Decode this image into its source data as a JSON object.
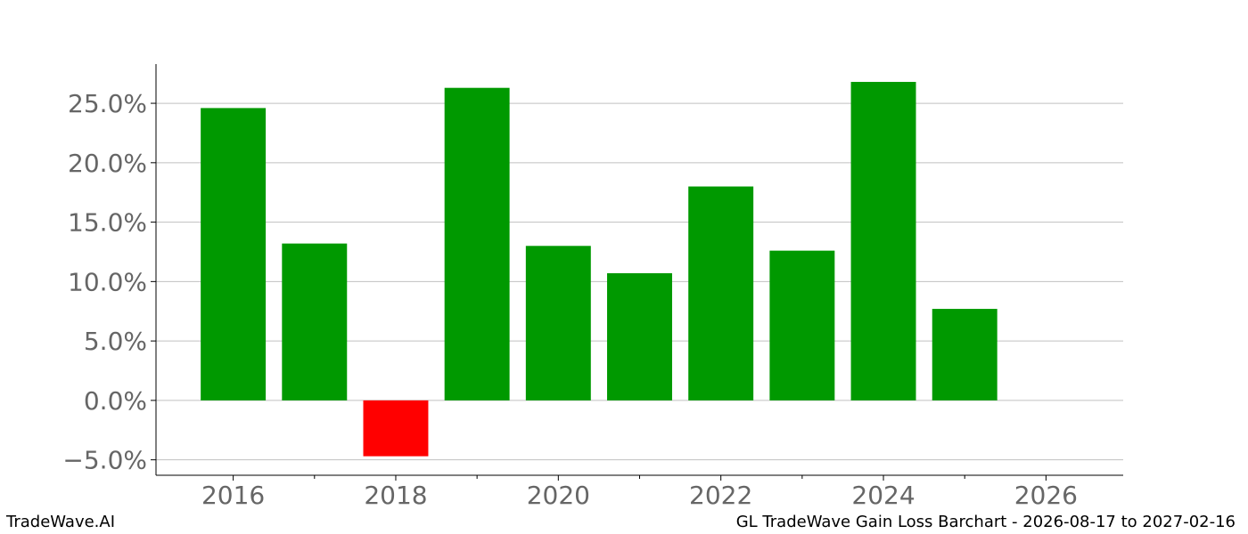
{
  "footer": {
    "brand": "TradeWave.AI",
    "caption": "GL TradeWave Gain Loss Barchart - 2026-08-17 to 2027-02-16"
  },
  "colors": {
    "gain": "#009900",
    "loss": "#ff0000",
    "grid": "#c0c0c0",
    "tick_label": "#666666",
    "axis": "#000000"
  },
  "chart_data": {
    "type": "bar",
    "title": "",
    "xlabel": "",
    "ylabel": "",
    "x": [
      2016,
      2017,
      2018,
      2019,
      2020,
      2021,
      2022,
      2023,
      2024,
      2025
    ],
    "values": [
      24.6,
      13.2,
      -4.7,
      26.3,
      13.0,
      10.7,
      18.0,
      12.6,
      26.8,
      7.7
    ],
    "value_format": "percent",
    "xlim": [
      2015.05,
      2026.95
    ],
    "ylim": [
      -6.3,
      28.3
    ],
    "xticks": [
      2016,
      2018,
      2020,
      2022,
      2024,
      2026
    ],
    "minor_xticks": [
      2017,
      2019,
      2021,
      2023,
      2025
    ],
    "yticks": [
      -5.0,
      0.0,
      5.0,
      10.0,
      15.0,
      20.0,
      25.0
    ],
    "ytick_labels": [
      "−5.0%",
      "0.0%",
      "5.0%",
      "10.0%",
      "15.0%",
      "20.0%",
      "25.0%"
    ],
    "grid": "y",
    "positive_color": "green",
    "negative_color": "red"
  }
}
